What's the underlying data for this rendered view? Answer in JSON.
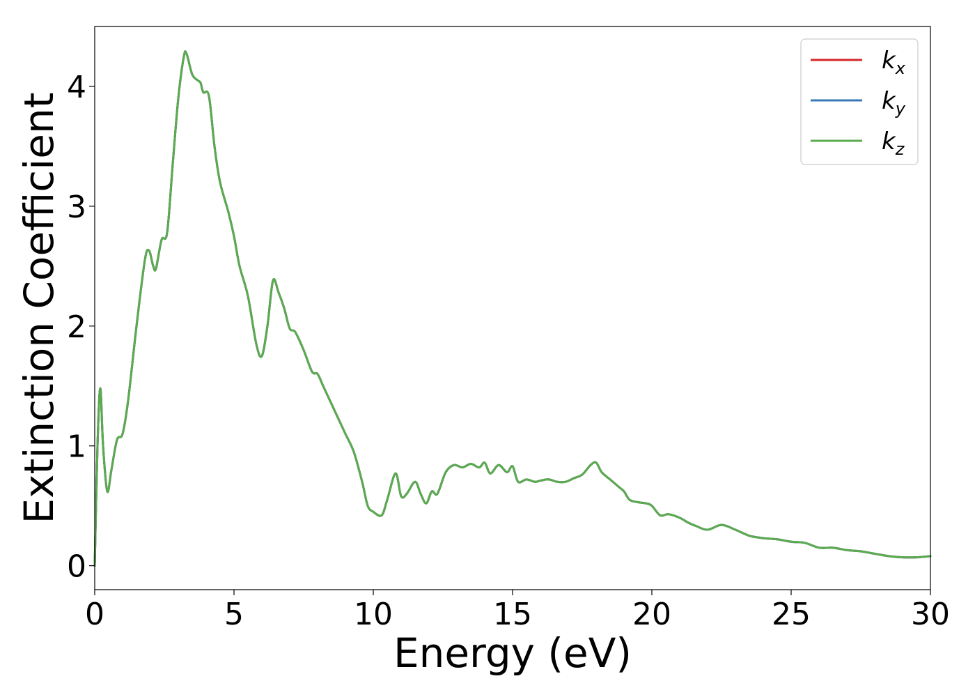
{
  "chart_data": {
    "type": "line",
    "title": "",
    "xlabel": "Energy (eV)",
    "ylabel": "Extinction Coefficient",
    "xlim": [
      0,
      30
    ],
    "ylim": [
      -0.2,
      4.5
    ],
    "xticks": [
      0,
      5,
      10,
      15,
      20,
      25,
      30
    ],
    "yticks": [
      0,
      1,
      2,
      3,
      4
    ],
    "grid": false,
    "legend_position": "top-right",
    "colors": {
      "kx": "#d62728",
      "ky": "#3a78b5",
      "kz": "#5aab4f"
    },
    "legend": [
      {
        "key": "kx",
        "base": "k",
        "sub": "x"
      },
      {
        "key": "ky",
        "base": "k",
        "sub": "y"
      },
      {
        "key": "kz",
        "base": "k",
        "sub": "z"
      }
    ],
    "x": [
      0,
      0.1,
      0.2,
      0.3,
      0.45,
      0.6,
      0.8,
      1.0,
      1.2,
      1.5,
      1.8,
      1.95,
      2.1,
      2.2,
      2.4,
      2.6,
      2.8,
      3.0,
      3.2,
      3.3,
      3.5,
      3.7,
      3.8,
      3.9,
      4.1,
      4.3,
      4.5,
      4.8,
      5.0,
      5.2,
      5.5,
      5.8,
      6.0,
      6.2,
      6.4,
      6.6,
      6.8,
      7.0,
      7.2,
      7.5,
      7.8,
      8.0,
      8.2,
      8.5,
      8.8,
      9.0,
      9.3,
      9.6,
      9.8,
      10.0,
      10.3,
      10.5,
      10.8,
      11.0,
      11.2,
      11.5,
      11.7,
      11.9,
      12.1,
      12.3,
      12.6,
      12.9,
      13.2,
      13.5,
      13.8,
      14.0,
      14.2,
      14.5,
      14.8,
      15.0,
      15.2,
      15.5,
      15.8,
      16.0,
      16.3,
      16.6,
      16.9,
      17.2,
      17.5,
      17.8,
      18.0,
      18.2,
      18.5,
      18.8,
      19.0,
      19.2,
      19.5,
      19.8,
      20.0,
      20.3,
      20.6,
      21.0,
      21.3,
      21.6,
      22.0,
      22.5,
      23.0,
      23.5,
      24.0,
      24.5,
      25.0,
      25.5,
      26.0,
      26.5,
      27.0,
      27.5,
      28.0,
      28.5,
      29.0,
      29.5,
      30.0
    ],
    "series": [
      {
        "name": "kx",
        "color_key": "kx",
        "values": [
          0,
          1.0,
          1.48,
          1.0,
          0.62,
          0.8,
          1.05,
          1.1,
          1.38,
          2.0,
          2.55,
          2.63,
          2.5,
          2.48,
          2.72,
          2.78,
          3.35,
          3.9,
          4.25,
          4.27,
          4.1,
          4.05,
          4.03,
          3.95,
          3.92,
          3.5,
          3.2,
          2.95,
          2.75,
          2.5,
          2.25,
          1.85,
          1.75,
          2.0,
          2.38,
          2.28,
          2.15,
          1.98,
          1.95,
          1.8,
          1.62,
          1.6,
          1.5,
          1.35,
          1.2,
          1.1,
          0.95,
          0.7,
          0.5,
          0.45,
          0.42,
          0.55,
          0.77,
          0.58,
          0.6,
          0.7,
          0.6,
          0.52,
          0.62,
          0.6,
          0.78,
          0.84,
          0.82,
          0.85,
          0.82,
          0.86,
          0.77,
          0.84,
          0.78,
          0.83,
          0.7,
          0.72,
          0.7,
          0.71,
          0.72,
          0.7,
          0.7,
          0.73,
          0.76,
          0.84,
          0.86,
          0.78,
          0.72,
          0.66,
          0.62,
          0.55,
          0.53,
          0.52,
          0.5,
          0.42,
          0.43,
          0.4,
          0.36,
          0.33,
          0.3,
          0.34,
          0.3,
          0.25,
          0.23,
          0.22,
          0.2,
          0.19,
          0.15,
          0.15,
          0.13,
          0.12,
          0.1,
          0.08,
          0.07,
          0.07,
          0.08
        ]
      },
      {
        "name": "ky",
        "color_key": "ky",
        "values": [
          0,
          1.0,
          1.48,
          1.0,
          0.62,
          0.8,
          1.05,
          1.1,
          1.38,
          2.0,
          2.55,
          2.63,
          2.5,
          2.48,
          2.72,
          2.78,
          3.35,
          3.9,
          4.25,
          4.27,
          4.1,
          4.05,
          4.03,
          3.95,
          3.92,
          3.5,
          3.2,
          2.95,
          2.75,
          2.5,
          2.25,
          1.85,
          1.75,
          2.0,
          2.38,
          2.28,
          2.15,
          1.98,
          1.95,
          1.8,
          1.62,
          1.6,
          1.5,
          1.35,
          1.2,
          1.1,
          0.95,
          0.7,
          0.5,
          0.45,
          0.42,
          0.55,
          0.77,
          0.58,
          0.6,
          0.7,
          0.6,
          0.52,
          0.62,
          0.6,
          0.78,
          0.84,
          0.82,
          0.85,
          0.82,
          0.86,
          0.77,
          0.84,
          0.78,
          0.83,
          0.7,
          0.72,
          0.7,
          0.71,
          0.72,
          0.7,
          0.7,
          0.73,
          0.76,
          0.84,
          0.86,
          0.78,
          0.72,
          0.66,
          0.62,
          0.55,
          0.53,
          0.52,
          0.5,
          0.42,
          0.43,
          0.4,
          0.36,
          0.33,
          0.3,
          0.34,
          0.3,
          0.25,
          0.23,
          0.22,
          0.2,
          0.19,
          0.15,
          0.15,
          0.13,
          0.12,
          0.1,
          0.08,
          0.07,
          0.07,
          0.08
        ]
      },
      {
        "name": "kz",
        "color_key": "kz",
        "values": [
          0,
          1.0,
          1.48,
          1.0,
          0.62,
          0.8,
          1.05,
          1.1,
          1.38,
          2.0,
          2.55,
          2.63,
          2.5,
          2.48,
          2.72,
          2.78,
          3.35,
          3.9,
          4.25,
          4.27,
          4.1,
          4.05,
          4.03,
          3.95,
          3.92,
          3.5,
          3.2,
          2.95,
          2.75,
          2.5,
          2.25,
          1.85,
          1.75,
          2.0,
          2.38,
          2.28,
          2.15,
          1.98,
          1.95,
          1.8,
          1.62,
          1.6,
          1.5,
          1.35,
          1.2,
          1.1,
          0.95,
          0.7,
          0.5,
          0.45,
          0.42,
          0.55,
          0.77,
          0.58,
          0.6,
          0.7,
          0.6,
          0.52,
          0.62,
          0.6,
          0.78,
          0.84,
          0.82,
          0.85,
          0.82,
          0.86,
          0.77,
          0.84,
          0.78,
          0.83,
          0.7,
          0.72,
          0.7,
          0.71,
          0.72,
          0.7,
          0.7,
          0.73,
          0.76,
          0.84,
          0.86,
          0.78,
          0.72,
          0.66,
          0.62,
          0.55,
          0.53,
          0.52,
          0.5,
          0.42,
          0.43,
          0.4,
          0.36,
          0.33,
          0.3,
          0.34,
          0.3,
          0.25,
          0.23,
          0.22,
          0.2,
          0.19,
          0.15,
          0.15,
          0.13,
          0.12,
          0.1,
          0.08,
          0.07,
          0.07,
          0.08
        ]
      }
    ]
  }
}
